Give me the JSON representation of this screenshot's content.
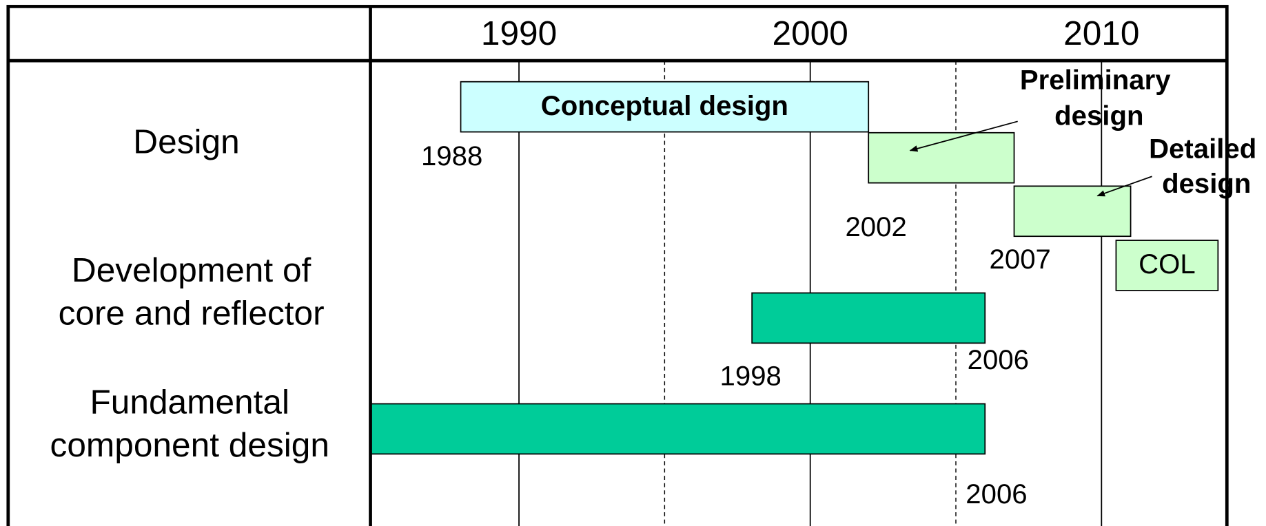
{
  "chart_data": {
    "type": "gantt",
    "xlim": [
      1984.9,
      2014.25
    ],
    "xticks": [
      1990,
      2000,
      2010
    ],
    "minor_xticks": [
      1995,
      2005
    ],
    "rows": [
      {
        "label": [
          "Design"
        ],
        "bars": [
          {
            "name": "Conceptual design",
            "start": 1988,
            "end": 2002,
            "color": "#ccffff"
          },
          {
            "name": "Preliminary design",
            "start": 2002,
            "end": 2007,
            "color": "#ccffcc"
          },
          {
            "name": "Detailed design",
            "start": 2007,
            "end": 2011,
            "color": "#ccffcc"
          },
          {
            "name": "COL",
            "start": 2010.5,
            "end": 2014,
            "color": "#ccffcc"
          }
        ]
      },
      {
        "label": [
          "Development of",
          "core and reflector"
        ],
        "bars": [
          {
            "start": 1998,
            "end": 2006,
            "color": "#00cc99"
          }
        ]
      },
      {
        "label": [
          "Fundamental",
          "component design"
        ],
        "bars": [
          {
            "start": 1984.9,
            "end": 2006,
            "color": "#00cc99"
          }
        ]
      }
    ]
  }
}
